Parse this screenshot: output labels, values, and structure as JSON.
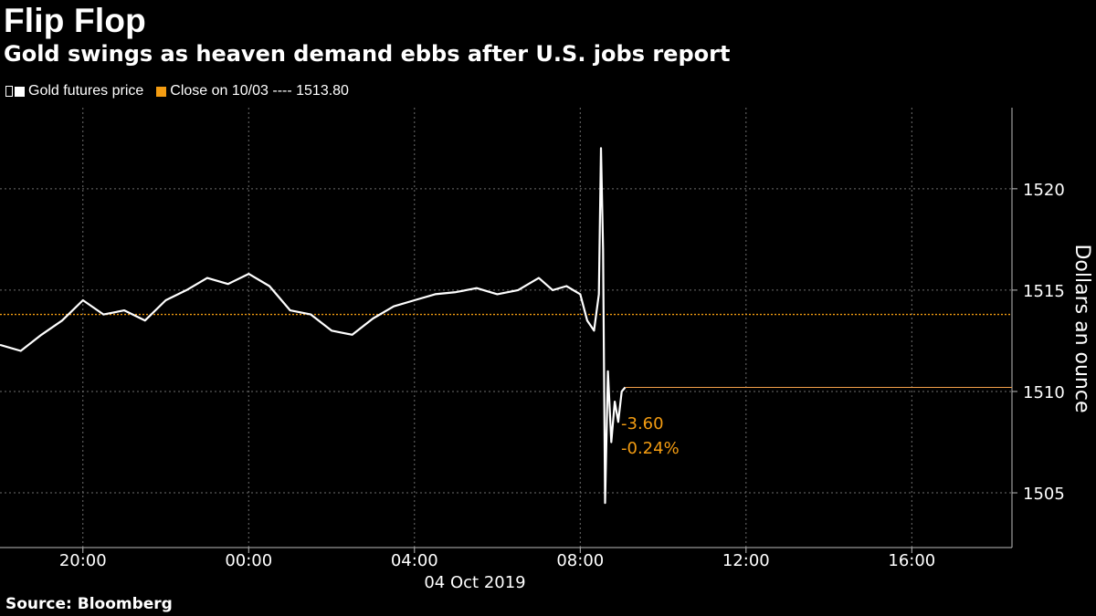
{
  "header": {
    "title": "Flip Flop",
    "subtitle": "Gold swings as heaven demand ebbs after U.S. jobs report"
  },
  "legend": {
    "items": [
      {
        "label": "Gold futures price",
        "color": "#ffffff"
      },
      {
        "label": "Close on 10/03 ---- 1513.80",
        "color": "#f39c12"
      }
    ]
  },
  "annotations": {
    "change": "-3.60",
    "change_pct": "-0.24%"
  },
  "footer": {
    "source": "Source: Bloomberg"
  },
  "colors": {
    "background": "#000000",
    "line": "#ffffff",
    "reference": "#f39c12",
    "grid": "#6e6e6e"
  },
  "chart_data": {
    "type": "line",
    "title": "Flip Flop",
    "subtitle": "Gold swings as heaven demand ebbs after U.S. jobs report",
    "ylabel": "Dollars an ounce",
    "xlabel": "",
    "date_label": "04 Oct 2019",
    "x_ticks": [
      "20:00",
      "00:00",
      "04:00",
      "08:00",
      "12:00",
      "16:00"
    ],
    "y_ticks": [
      1505,
      1510,
      1515,
      1520
    ],
    "ylim": [
      1502.3,
      1524
    ],
    "x_range": [
      "03 Oct 2019 18:00",
      "04 Oct 2019 18:25"
    ],
    "reference_line": {
      "label": "Close on 10/03",
      "value": 1513.8
    },
    "last_value": 1510.2,
    "series": [
      {
        "name": "Gold futures price",
        "x": [
          "03 Oct 2019 18:00",
          "03 Oct 2019 18:30",
          "03 Oct 2019 19:00",
          "03 Oct 2019 19:30",
          "03 Oct 2019 20:00",
          "03 Oct 2019 20:30",
          "03 Oct 2019 21:00",
          "03 Oct 2019 21:30",
          "03 Oct 2019 22:00",
          "03 Oct 2019 22:30",
          "03 Oct 2019 23:00",
          "03 Oct 2019 23:30",
          "04 Oct 2019 00:00",
          "04 Oct 2019 00:30",
          "04 Oct 2019 01:00",
          "04 Oct 2019 01:30",
          "04 Oct 2019 02:00",
          "04 Oct 2019 02:30",
          "04 Oct 2019 03:00",
          "04 Oct 2019 03:30",
          "04 Oct 2019 04:00",
          "04 Oct 2019 04:30",
          "04 Oct 2019 05:00",
          "04 Oct 2019 05:30",
          "04 Oct 2019 06:00",
          "04 Oct 2019 06:30",
          "04 Oct 2019 07:00",
          "04 Oct 2019 07:20",
          "04 Oct 2019 07:40",
          "04 Oct 2019 08:00",
          "04 Oct 2019 08:10",
          "04 Oct 2019 08:20",
          "04 Oct 2019 08:27",
          "04 Oct 2019 08:30",
          "04 Oct 2019 08:33",
          "04 Oct 2019 08:36",
          "04 Oct 2019 08:40",
          "04 Oct 2019 08:45",
          "04 Oct 2019 08:50",
          "04 Oct 2019 08:55",
          "04 Oct 2019 09:00",
          "04 Oct 2019 09:05"
        ],
        "values": [
          1512.3,
          1512.0,
          1512.8,
          1513.5,
          1514.5,
          1513.8,
          1514.0,
          1513.5,
          1514.5,
          1515.0,
          1515.6,
          1515.3,
          1515.8,
          1515.2,
          1514.0,
          1513.8,
          1513.0,
          1512.8,
          1513.6,
          1514.2,
          1514.5,
          1514.8,
          1514.9,
          1515.1,
          1514.8,
          1515.0,
          1515.6,
          1515.0,
          1515.2,
          1514.8,
          1513.5,
          1513.0,
          1514.8,
          1522.0,
          1517.0,
          1504.5,
          1511.0,
          1507.5,
          1509.5,
          1508.5,
          1510.0,
          1510.2
        ]
      }
    ]
  }
}
